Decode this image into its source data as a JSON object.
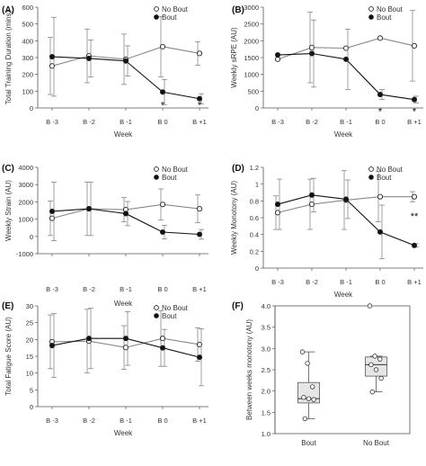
{
  "chart_data": [
    {
      "panel": "(A)",
      "type": "line",
      "categories": [
        "B -3",
        "B -2",
        "B -1",
        "B 0",
        "B +1"
      ],
      "xlabel": "Week",
      "ylabel": "Total Training Duration (mins)",
      "ylim": [
        0,
        600
      ],
      "yticks": [
        0,
        100,
        200,
        300,
        400,
        500,
        600
      ],
      "legend": "top-right",
      "series": [
        {
          "name": "No Bout",
          "marker": "open-circle",
          "values": [
            250,
            310,
            290,
            365,
            325
          ],
          "errors": [
            170,
            160,
            150,
            180,
            70
          ]
        },
        {
          "name": "Bout",
          "marker": "filled-circle",
          "values": [
            305,
            295,
            280,
            95,
            55
          ],
          "errors": [
            235,
            110,
            90,
            75,
            30
          ]
        }
      ],
      "annotations": [
        {
          "text": "*",
          "category": "B 0",
          "y": 20
        },
        {
          "text": "*",
          "category": "B +1",
          "y": 20
        }
      ]
    },
    {
      "panel": "(B)",
      "type": "line",
      "categories": [
        "B -3",
        "B -2",
        "B -1",
        "B 0",
        "B +1"
      ],
      "xlabel": "Week",
      "ylabel": "Weekly sRPE (AU)",
      "ylim": [
        0,
        3000
      ],
      "yticks": [
        0,
        500,
        1000,
        1500,
        2000,
        2500,
        3000
      ],
      "legend": "top-right",
      "series": [
        {
          "name": "No Bout",
          "marker": "open-circle",
          "values": [
            1450,
            1800,
            1780,
            2080,
            1850
          ],
          "errors": [
            0,
            1050,
            0,
            0,
            1050
          ]
        },
        {
          "name": "Bout",
          "marker": "filled-circle",
          "values": [
            1580,
            1620,
            1450,
            400,
            250
          ],
          "errors": [
            0,
            1000,
            900,
            150,
            100
          ]
        }
      ],
      "annotations": [
        {
          "text": "*",
          "category": "B 0",
          "y": -100
        },
        {
          "text": "*",
          "category": "B +1",
          "y": -100
        }
      ]
    },
    {
      "panel": "(C)",
      "type": "line",
      "categories": [
        "B -3",
        "B -2",
        "B -1",
        "B 0",
        "B +1"
      ],
      "xlabel": "Week",
      "ylabel": "Weekly Strain (AU)",
      "ylim": [
        -1000,
        4000
      ],
      "yticks": [
        -1000,
        0,
        1000,
        2000,
        3000,
        4000
      ],
      "legend": "top-right",
      "series": [
        {
          "name": "No Bout",
          "marker": "open-circle",
          "values": [
            1050,
            1600,
            1550,
            1850,
            1600
          ],
          "errors": [
            1000,
            1550,
            700,
            900,
            800
          ]
        },
        {
          "name": "Bout",
          "marker": "filled-circle",
          "values": [
            1450,
            1600,
            1320,
            250,
            120
          ],
          "errors": [
            1700,
            1550,
            700,
            400,
            280
          ]
        }
      ]
    },
    {
      "panel": "(D)",
      "type": "line",
      "categories": [
        "B -3",
        "B -2",
        "B -1",
        "B 0",
        "B +1"
      ],
      "xlabel": "Week",
      "ylabel": "Weekly Monotony (AU)",
      "ylim": [
        0,
        1.2
      ],
      "yticks": [
        0,
        0.2,
        0.4,
        0.6,
        0.8,
        1,
        1.2
      ],
      "legend": "top-right",
      "series": [
        {
          "name": "No Bout",
          "marker": "open-circle",
          "values": [
            0.66,
            0.76,
            0.81,
            0.85,
            0.85
          ],
          "errors": [
            0.2,
            0.3,
            0.35,
            0.3,
            0.06
          ]
        },
        {
          "name": "Bout",
          "marker": "filled-circle",
          "values": [
            0.76,
            0.87,
            0.82,
            0.43,
            0.27
          ],
          "errors": [
            0.3,
            0.2,
            0.23,
            0.32,
            0.02
          ]
        }
      ],
      "annotations": [
        {
          "text": "**",
          "category": "B +1",
          "y": 0.62
        }
      ]
    },
    {
      "panel": "(E)",
      "type": "line",
      "categories": [
        "B -3",
        "B -2",
        "B -1",
        "B 0",
        "B +1"
      ],
      "xlabel": "Week",
      "ylabel": "Total Fatigue Score (AU)",
      "ylim": [
        0,
        30
      ],
      "yticks": [
        0,
        5,
        10,
        15,
        20,
        25,
        30
      ],
      "legend": "top-right",
      "series": [
        {
          "name": "No Bout",
          "marker": "open-circle",
          "values": [
            19.3,
            19.5,
            17.6,
            20.3,
            18.5
          ],
          "errors": [
            8,
            9.5,
            6.5,
            8.3,
            5
          ]
        },
        {
          "name": "Bout",
          "marker": "filled-circle",
          "values": [
            18.2,
            20.3,
            20.3,
            17.5,
            14.7
          ],
          "errors": [
            9.5,
            9,
            8,
            5.5,
            8.5
          ]
        }
      ]
    },
    {
      "panel": "(F)",
      "type": "box",
      "categories": [
        "Bout",
        "No Bout"
      ],
      "ylabel": "Between weeks monotony (AU)",
      "ylim": [
        1.0,
        4.0
      ],
      "yticks": [
        1.0,
        1.5,
        2.0,
        2.5,
        3.0,
        3.5,
        4.0
      ],
      "boxes": [
        {
          "name": "Bout",
          "min": 1.35,
          "q1": 1.72,
          "median": 1.82,
          "q3": 2.2,
          "max": 2.92,
          "points": [
            2.92,
            2.65,
            2.1,
            1.85,
            1.82,
            1.8,
            1.35
          ]
        },
        {
          "name": "No Bout",
          "min": 1.98,
          "q1": 2.35,
          "median": 2.62,
          "q3": 2.8,
          "max": 2.82,
          "points": [
            4.0,
            2.82,
            2.75,
            2.62,
            2.5,
            2.3,
            1.98
          ]
        }
      ]
    }
  ]
}
